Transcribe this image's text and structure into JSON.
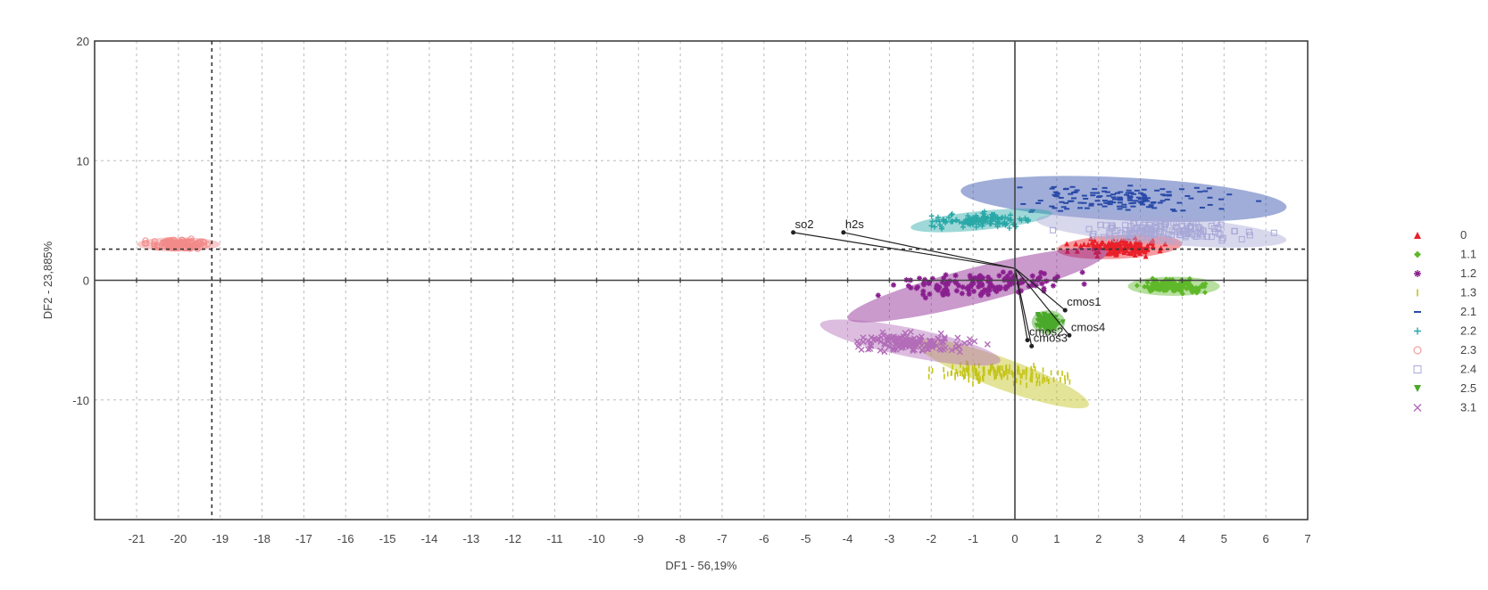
{
  "chart_data": {
    "type": "scatter",
    "xlabel": "DF1 - 56,19%",
    "ylabel": "DF2 - 23,885%",
    "xlim": [
      -22,
      7
    ],
    "ylim": [
      -20,
      20
    ],
    "xticks": [
      -21,
      -20,
      -19,
      -18,
      -17,
      -16,
      -15,
      -14,
      -13,
      -12,
      -11,
      -10,
      -9,
      -8,
      -7,
      -6,
      -5,
      -4,
      -3,
      -2,
      -1,
      0,
      1,
      2,
      3,
      4,
      5,
      6,
      7
    ],
    "yticks": [
      20,
      10,
      0,
      -10
    ],
    "grid": true,
    "reference_lines": {
      "x": -19.2,
      "y": 2.6
    },
    "series": [
      {
        "name": "0",
        "marker": "triangle-up",
        "color": "#e8202a",
        "center": [
          2.5,
          2.8
        ],
        "spread": [
          1.5,
          1.0
        ]
      },
      {
        "name": "1.1",
        "marker": "diamond",
        "color": "#5fb82a",
        "center": [
          3.8,
          -0.5
        ],
        "spread": [
          1.1,
          0.8
        ]
      },
      {
        "name": "1.2",
        "marker": "star",
        "color": "#8a1f8f",
        "center": [
          -0.9,
          -0.4
        ],
        "spread": [
          3.2,
          1.5
        ]
      },
      {
        "name": "1.3",
        "marker": "line-vertical",
        "color": "#c4c41a",
        "center": [
          -0.3,
          -7.8
        ],
        "spread": [
          2.2,
          1.3
        ]
      },
      {
        "name": "2.1",
        "marker": "dash",
        "color": "#2a4aa8",
        "center": [
          2.6,
          6.8
        ],
        "spread": [
          3.9,
          1.8
        ]
      },
      {
        "name": "2.2",
        "marker": "plus",
        "color": "#2aa8a8",
        "center": [
          -0.8,
          5.0
        ],
        "spread": [
          1.7,
          0.8
        ]
      },
      {
        "name": "2.3",
        "marker": "circle",
        "color": "#f28a8a",
        "center": [
          -20.0,
          3.0
        ],
        "spread": [
          1.0,
          0.6
        ]
      },
      {
        "name": "2.4",
        "marker": "square",
        "color": "#a8a8d8",
        "center": [
          3.5,
          4.2
        ],
        "spread": [
          3.0,
          1.2
        ]
      },
      {
        "name": "2.5",
        "marker": "triangle-down",
        "color": "#4aa82a",
        "center": [
          0.8,
          -3.5
        ],
        "spread": [
          0.4,
          1.0
        ]
      },
      {
        "name": "3.1",
        "marker": "x",
        "color": "#b26cb8",
        "center": [
          -2.5,
          -5.2
        ],
        "spread": [
          2.2,
          1.2
        ]
      }
    ],
    "vectors": [
      {
        "name": "so2",
        "x": -5.3,
        "y": 4.0
      },
      {
        "name": "h2s",
        "x": -4.1,
        "y": 4.0
      },
      {
        "name": "cmos1",
        "x": 1.2,
        "y": -2.5
      },
      {
        "name": "cmos4",
        "x": 1.3,
        "y": -4.6
      },
      {
        "name": "cmos2",
        "x": 0.3,
        "y": -5.0
      },
      {
        "name": "cmos3",
        "x": 0.4,
        "y": -5.5
      }
    ],
    "legend_position": "right"
  }
}
